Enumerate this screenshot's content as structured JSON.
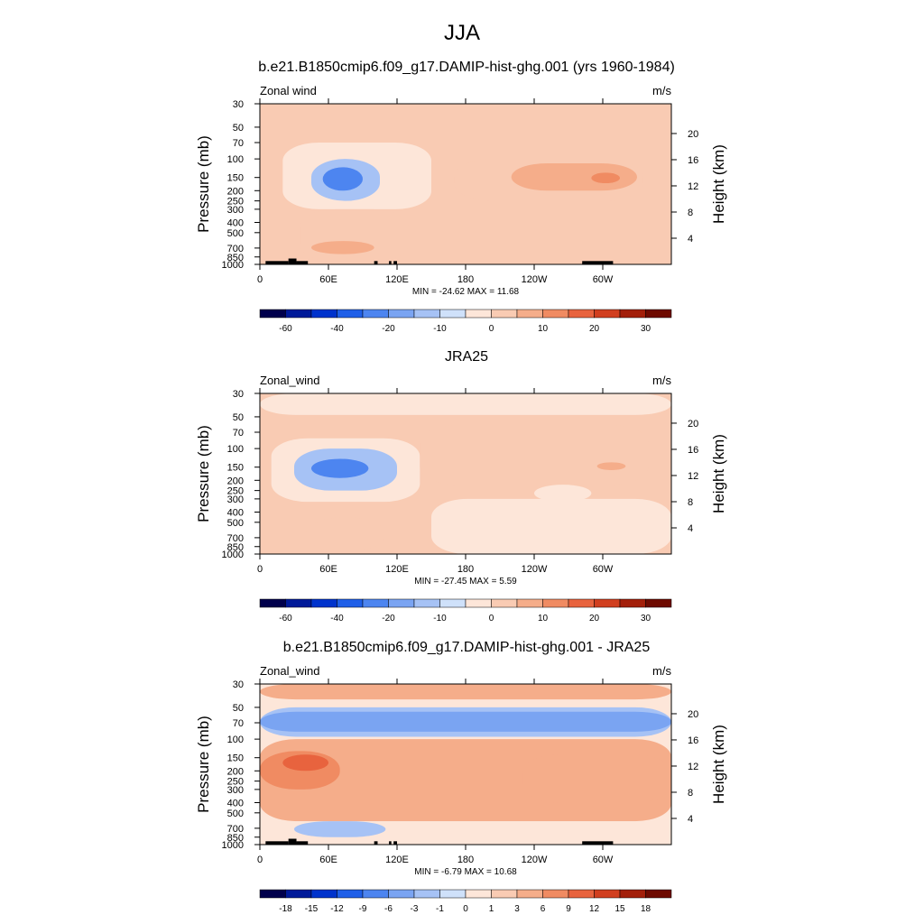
{
  "figure_title": "JJA",
  "chart_data": [
    {
      "type": "heatmap",
      "title": "b.e21.B1850cmip6.f09_g17.DAMIP-hist-ghg.001 (yrs 1960-1984)",
      "variable_label": "Zonal wind",
      "units_label": "m/s",
      "ylabel": "Pressure (mb)",
      "ylabel_right": "Height (km)",
      "x_ticks": [
        "0",
        "60E",
        "120E",
        "180",
        "120W",
        "60W"
      ],
      "y_ticks": [
        "30",
        "50",
        "70",
        "100",
        "150",
        "200",
        "250",
        "300",
        "400",
        "500",
        "700",
        "850",
        "1000"
      ],
      "y_ticks_right": [
        "20",
        "16",
        "12",
        "8",
        "4"
      ],
      "stats_label": "MIN = -24.62  MAX =  11.68",
      "min": -24.62,
      "max": 11.68,
      "colorbar_levels": [
        "-60",
        "-40",
        "-20",
        "-10",
        "0",
        "10",
        "20",
        "30"
      ],
      "topography": true,
      "regions": [
        {
          "lon": [
            20,
            150
          ],
          "p": [
            70,
            300
          ],
          "value": -5
        },
        {
          "lon": [
            45,
            105
          ],
          "p": [
            100,
            250
          ],
          "value": -12
        },
        {
          "lon": [
            55,
            90
          ],
          "p": [
            120,
            200
          ],
          "value": -22
        },
        {
          "lon": [
            170,
            335
          ],
          "p": [
            100,
            250
          ],
          "value": 4
        },
        {
          "lon": [
            220,
            330
          ],
          "p": [
            110,
            200
          ],
          "value": 7
        },
        {
          "lon": [
            290,
            315
          ],
          "p": [
            135,
            170
          ],
          "value": 11
        },
        {
          "lon": [
            35,
            130
          ],
          "p": [
            300,
            950
          ],
          "value": 2
        },
        {
          "lon": [
            45,
            100
          ],
          "p": [
            600,
            800
          ],
          "value": 5
        }
      ]
    },
    {
      "type": "heatmap",
      "title": "JRA25",
      "variable_label": "Zonal_wind",
      "units_label": "m/s",
      "ylabel": "Pressure (mb)",
      "ylabel_right": "Height (km)",
      "x_ticks": [
        "0",
        "60E",
        "120E",
        "180",
        "120W",
        "60W"
      ],
      "y_ticks": [
        "30",
        "50",
        "70",
        "100",
        "150",
        "200",
        "250",
        "300",
        "400",
        "500",
        "700",
        "850",
        "1000"
      ],
      "y_ticks_right": [
        "20",
        "16",
        "12",
        "8",
        "4"
      ],
      "stats_label": "MIN = -27.45  MAX =   5.59",
      "min": -27.45,
      "max": 5.59,
      "colorbar_levels": [
        "-60",
        "-40",
        "-20",
        "-10",
        "0",
        "10",
        "20",
        "30"
      ],
      "topography": false,
      "regions": [
        {
          "lon": [
            0,
            360
          ],
          "p": [
            30,
            48
          ],
          "value": -3
        },
        {
          "lon": [
            10,
            140
          ],
          "p": [
            80,
            320
          ],
          "value": -5
        },
        {
          "lon": [
            30,
            120
          ],
          "p": [
            100,
            250
          ],
          "value": -12
        },
        {
          "lon": [
            45,
            95
          ],
          "p": [
            125,
            190
          ],
          "value": -22
        },
        {
          "lon": [
            140,
            340
          ],
          "p": [
            60,
            220
          ],
          "value": 3
        },
        {
          "lon": [
            295,
            320
          ],
          "p": [
            135,
            160
          ],
          "value": 5
        },
        {
          "lon": [
            40,
            110
          ],
          "p": [
            450,
            950
          ],
          "value": 2
        },
        {
          "lon": [
            150,
            360
          ],
          "p": [
            300,
            1000
          ],
          "value": -3
        },
        {
          "lon": [
            240,
            290
          ],
          "p": [
            220,
            320
          ],
          "value": -3
        }
      ]
    },
    {
      "type": "heatmap",
      "title": "b.e21.B1850cmip6.f09_g17.DAMIP-hist-ghg.001 - JRA25",
      "variable_label": "Zonal_wind",
      "units_label": "m/s",
      "ylabel": "Pressure (mb)",
      "ylabel_right": "Height (km)",
      "x_ticks": [
        "0",
        "60E",
        "120E",
        "180",
        "120W",
        "60W"
      ],
      "y_ticks": [
        "30",
        "50",
        "70",
        "100",
        "150",
        "200",
        "250",
        "300",
        "400",
        "500",
        "700",
        "850",
        "1000"
      ],
      "y_ticks_right": [
        "20",
        "16",
        "12",
        "8",
        "4"
      ],
      "stats_label": "MIN =  -6.79  MAX =  10.68",
      "min": -6.79,
      "max": 10.68,
      "colorbar_levels": [
        "-18",
        "-15",
        "-12",
        "-9",
        "-6",
        "-3",
        "-1",
        "0",
        "1",
        "3",
        "6",
        "9",
        "12",
        "15",
        "18"
      ],
      "topography": true,
      "regions": [
        {
          "lon": [
            0,
            360
          ],
          "p": [
            30,
            42
          ],
          "value": 4
        },
        {
          "lon": [
            0,
            360
          ],
          "p": [
            50,
            95
          ],
          "value": -2
        },
        {
          "lon": [
            0,
            360
          ],
          "p": [
            55,
            85
          ],
          "value": -3.5
        },
        {
          "lon": [
            130,
            230
          ],
          "p": [
            65,
            75
          ],
          "value": -6
        },
        {
          "lon": [
            0,
            360
          ],
          "p": [
            100,
            600
          ],
          "value": 3
        },
        {
          "lon": [
            0,
            70
          ],
          "p": [
            130,
            300
          ],
          "value": 7
        },
        {
          "lon": [
            20,
            60
          ],
          "p": [
            140,
            200
          ],
          "value": 10
        },
        {
          "lon": [
            230,
            360
          ],
          "p": [
            140,
            400
          ],
          "value": 5
        },
        {
          "lon": [
            0,
            360
          ],
          "p": [
            600,
            1000
          ],
          "value": 0.5
        },
        {
          "lon": [
            30,
            110
          ],
          "p": [
            600,
            850
          ],
          "value": -2
        }
      ]
    }
  ],
  "colors": {
    "main_levels": [
      "#00004c",
      "#001a99",
      "#0033cc",
      "#1f5fe8",
      "#4d85f0",
      "#7aa4f2",
      "#a6c2f5",
      "#cfe1fa",
      "#fde6d9",
      "#f9cbb3",
      "#f5ad8a",
      "#f08b62",
      "#e8633e",
      "#d13f1f",
      "#a31f0a",
      "#6e0a00"
    ],
    "diff_levels": [
      "#00004c",
      "#001a99",
      "#0033cc",
      "#1f5fe8",
      "#4d85f0",
      "#7aa4f2",
      "#a6c2f5",
      "#cfe1fa",
      "#fde6d9",
      "#f9cbb3",
      "#f5ad8a",
      "#f08b62",
      "#e8633e",
      "#d13f1f",
      "#a31f0a",
      "#6e0a00"
    ]
  }
}
